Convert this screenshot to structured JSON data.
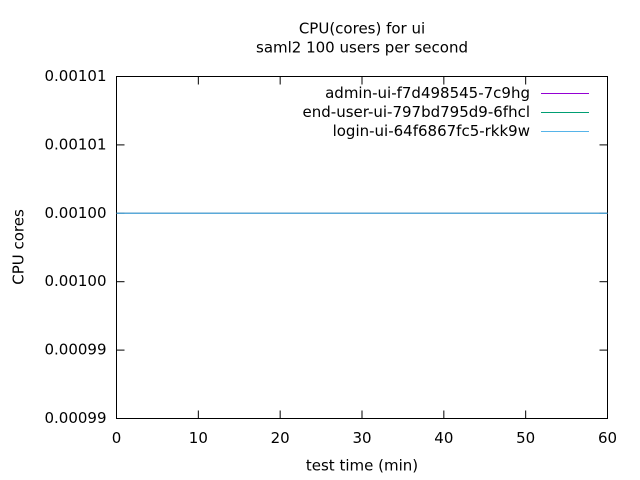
{
  "chart_data": {
    "type": "line",
    "title": "CPU(cores) for ui",
    "subtitle": "saml2 100 users per second",
    "x_label": "test time (min)",
    "y_label": "CPU cores",
    "x": [
      0,
      10,
      20,
      30,
      40,
      50,
      60
    ],
    "series": [
      {
        "name": "admin-ui-f7d498545-7c9hg",
        "color": "#9400d3",
        "values": [
          0.001,
          0.001,
          0.001,
          0.001,
          0.001,
          0.001,
          0.001
        ]
      },
      {
        "name": "end-user-ui-797bd795d9-6fhcl",
        "color": "#009e73",
        "values": [
          0.001,
          0.001,
          0.001,
          0.001,
          0.001,
          0.001,
          0.001
        ]
      },
      {
        "name": "login-ui-64f6867fc5-rkk9w",
        "color": "#56b4e9",
        "values": [
          0.001,
          0.001,
          0.001,
          0.001,
          0.001,
          0.001,
          0.001
        ]
      }
    ],
    "xlim": [
      0,
      60
    ],
    "xticks": [
      0,
      10,
      20,
      30,
      40,
      50,
      60
    ],
    "ylim": [
      0.000985,
      0.00101
    ],
    "yticks": [
      {
        "value": 0.000985,
        "label": "0.00099"
      },
      {
        "value": 0.00099,
        "label": "0.00099"
      },
      {
        "value": 0.000995,
        "label": "0.00100"
      },
      {
        "value": 0.001,
        "label": "0.00100"
      },
      {
        "value": 0.001005,
        "label": "0.00101"
      },
      {
        "value": 0.00101,
        "label": "0.00101"
      }
    ],
    "legend": "top-right",
    "grid": false
  }
}
